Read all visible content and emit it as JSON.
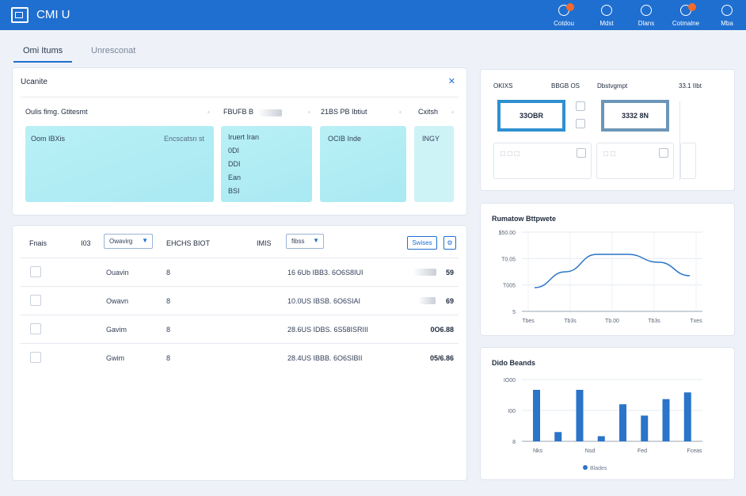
{
  "app": {
    "title": "CMI U"
  },
  "toolbar": [
    {
      "label": "Cotdou",
      "icon": "bell-icon",
      "badge": true
    },
    {
      "label": "Mdst",
      "icon": "clock-icon",
      "badge": false
    },
    {
      "label": "Dlans",
      "icon": "touch-icon",
      "badge": false
    },
    {
      "label": "Cotmalne",
      "icon": "user-icon",
      "badge": true
    },
    {
      "label": "Mba",
      "icon": "anchor-icon",
      "badge": false
    }
  ],
  "tabs": [
    {
      "label": "Omi Itums",
      "active": true
    },
    {
      "label": "Unresconat",
      "active": false
    }
  ],
  "filter_card": {
    "title": "Ucanite",
    "columns": [
      "Oulis fimg. Gtitesmt",
      "FBUFB B",
      "21BS PB Ibtiut",
      "Cxitsh"
    ],
    "panels": [
      {
        "title": "Oom IBXis",
        "subtitle": "Encscatsn st"
      },
      {
        "items": [
          "Iruert Iran",
          "0DI",
          "DDI",
          "Ean",
          "BSI"
        ]
      },
      {
        "title": "OCIB Inde"
      },
      {
        "title": "INGY"
      }
    ]
  },
  "table": {
    "header": {
      "col1": "Fnais",
      "col2": "I03",
      "select1": "Owavirg",
      "col3": "EHCHS BIOT",
      "col4": "IMIS",
      "select2": "fibss",
      "button": "Swises"
    },
    "rows": [
      {
        "name": "Ouavin",
        "num": "8",
        "ref": "16 6Ub IBB3. 6O6S8IUI",
        "amount": "59"
      },
      {
        "name": "Owavn",
        "num": "8",
        "ref": "10.0US IBSB. 6O6SIAI",
        "amount": "69"
      },
      {
        "name": "Gavim",
        "num": "8",
        "ref": "28.6US IDBS. 6S58ISRIII",
        "amount": "0O6.88"
      },
      {
        "name": "Gwim",
        "num": "8",
        "ref": "28.4US IBBB. 6O6SIBII",
        "amount": "05/6.86"
      }
    ]
  },
  "stats": {
    "labels": [
      "OKIXS",
      "BBGB OS",
      "Dbstvgmpt",
      "33.1 IIbt"
    ],
    "values": [
      "33OBR",
      "3332 8N"
    ]
  },
  "line_chart": {
    "title": "Rumatow Bttpwete",
    "chart_data": {
      "type": "line",
      "title": "Rumatow Bttpwete",
      "x_tick_labels": [
        "Tbes",
        "Tb3s",
        "Tb.00",
        "Tb3s",
        "Txes"
      ],
      "y_tick_labels": [
        "$50.00",
        "T0.05",
        "T005",
        "5"
      ],
      "series": [
        {
          "values": [
            0.3,
            0.5,
            0.72,
            0.72,
            0.62,
            0.45
          ]
        }
      ],
      "ylim": [
        0,
        1
      ],
      "grid": true,
      "color": "#2a74c9"
    }
  },
  "bar_chart": {
    "title": "Dido Beands",
    "legend": "Blades",
    "chart_data": {
      "type": "bar",
      "title": "Dido Beands",
      "x_tick_labels": [
        "Nks",
        "Nsd",
        "Fed",
        "Fceas"
      ],
      "y_tick_labels": [
        "IO00",
        "I00",
        "8"
      ],
      "values": [
        1.0,
        0.18,
        1.0,
        0.1,
        0.72,
        0.5,
        0.82,
        0.95
      ],
      "ylim": [
        0,
        1.2
      ],
      "grid": true,
      "color": "#2a74c9"
    }
  }
}
